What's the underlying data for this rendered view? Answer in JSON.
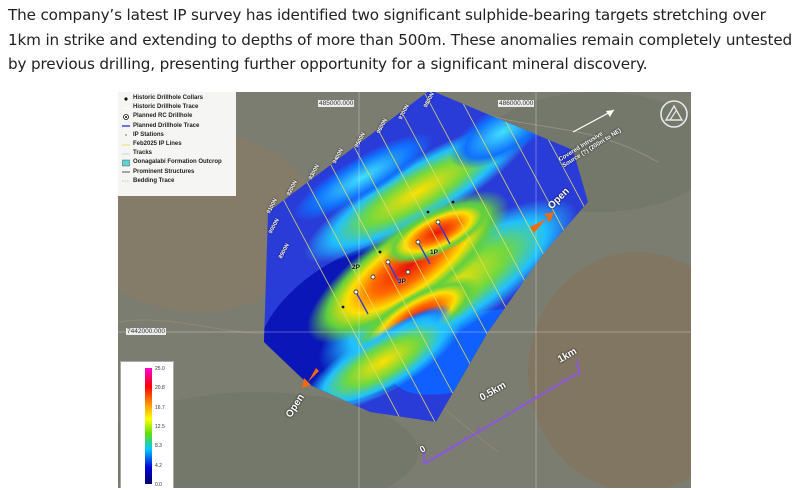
{
  "article": {
    "paragraph": "The company’s latest IP survey has identified two significant sulphide-bearing targets stretching over 1km in strike and extending to depths of more than 500m. These anomalies remain completely untested by previous drilling, presenting further opportunity for a significant mineral discovery."
  },
  "map": {
    "legend": [
      {
        "symbol": "historic-collar",
        "label": "Historic Drillhole Collars"
      },
      {
        "symbol": "historic-trace",
        "label": "Historic Drillhole Trace"
      },
      {
        "symbol": "planned-rc",
        "label": "Planned RC Drillhole"
      },
      {
        "symbol": "planned-trace",
        "label": "Planned Drillhole Trace"
      },
      {
        "symbol": "ip-stations",
        "label": "IP Stations"
      },
      {
        "symbol": "ip-lines",
        "label": "Feb2025 IP Lines"
      },
      {
        "symbol": "tracks",
        "label": "Tracks"
      },
      {
        "symbol": "outcrop",
        "label": "Oonagalabi Formation Outcrop"
      },
      {
        "symbol": "structures",
        "label": "Prominent Structures"
      },
      {
        "symbol": "bedding",
        "label": "Bedding Trace"
      }
    ],
    "colors": {
      "planned_trace": "#3b3bd0",
      "ip_lines": "#e8e060",
      "outcrop": "#5fd4d4",
      "arrow": "#f06a10"
    },
    "coords": {
      "easting_1": "485000.000",
      "easting_2": "486000.000",
      "northing": "7442000.000"
    },
    "line_labels": [
      "9800N",
      "9700N",
      "9600N",
      "9500N",
      "9400N",
      "9300N",
      "9200N",
      "9100N",
      "9000N",
      "8900N"
    ],
    "source_note": "Covered Intrusive Source (?) (200m to NE)",
    "open_label": "Open",
    "targets": [
      "1P",
      "2P",
      "3P"
    ],
    "scalebar": {
      "zero": "0",
      "mid": "0.5km",
      "end": "1km"
    },
    "colorscale": {
      "ticks": [
        "25.0",
        "20.8",
        "16.7",
        "12.5",
        "8.3",
        "4.2",
        "0.0"
      ]
    }
  }
}
